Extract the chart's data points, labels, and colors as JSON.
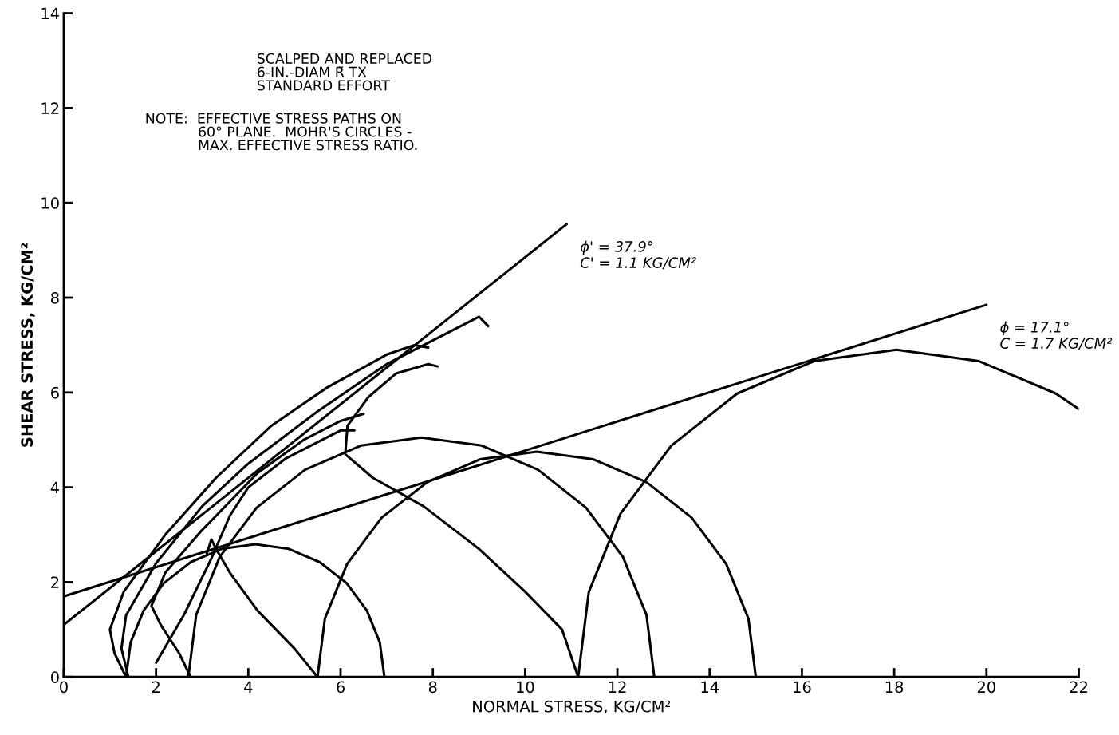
{
  "chart_data": {
    "type": "line",
    "xlabel": "NORMAL STRESS, KG/CM²",
    "ylabel": "SHEAR STRESS, KG/CM²",
    "xlim": [
      0,
      22
    ],
    "xticks": [
      0,
      2,
      4,
      6,
      8,
      10,
      12,
      14,
      16,
      18,
      20,
      22
    ],
    "ylim": [
      0,
      14
    ],
    "yticks": [
      0,
      2,
      4,
      6,
      8,
      10,
      12,
      14
    ],
    "grid": false,
    "annotations": [
      "SCALPED AND REPLACED\n6-IN.-DIAM R̄ TX\nSTANDARD EFFORT",
      "NOTE:  EFFECTIVE STRESS PATHS ON\n            60° PLANE.  MOHR'S CIRCLES -\n            MAX. EFFECTIVE STRESS RATIO.",
      {
        "text": "ϕ' = 37.9°\nC' = 1.1 KG/CM²",
        "x": 10.9,
        "y": 9.55
      },
      {
        "text": "ϕ = 17.1°\nC = 1.7 KG/CM²",
        "x": 20,
        "y": 7.85
      }
    ],
    "series": [
      {
        "color": "#000000",
        "x": [
          0,
          10.9
        ],
        "values": [
          1.1,
          9.55
        ]
      },
      {
        "color": "#000000",
        "x": [
          0,
          20
        ],
        "values": [
          1.7,
          7.85
        ]
      },
      {
        "color": "#000000",
        "x": [
          6.95,
          6.85,
          6.57,
          6.13,
          5.55,
          4.88,
          4.15,
          3.42,
          2.75,
          2.17,
          1.73,
          1.45,
          1.35
        ],
        "values": [
          0,
          0.73,
          1.4,
          1.98,
          2.42,
          2.7,
          2.8,
          2.7,
          2.42,
          1.98,
          1.4,
          0.73,
          0
        ]
      },
      {
        "color": "#000000",
        "x": [
          12.8,
          12.63,
          12.12,
          11.32,
          10.28,
          9.06,
          7.75,
          6.44,
          5.23,
          4.18,
          3.38,
          2.87,
          2.7
        ],
        "values": [
          0,
          1.31,
          2.53,
          3.57,
          4.37,
          4.88,
          5.05,
          4.88,
          4.37,
          3.57,
          2.53,
          1.31,
          0
        ]
      },
      {
        "color": "#000000",
        "x": [
          15.0,
          14.84,
          14.36,
          13.61,
          12.63,
          11.48,
          10.25,
          9.02,
          7.88,
          6.89,
          6.14,
          5.66,
          5.5
        ],
        "values": [
          0,
          1.23,
          2.38,
          3.36,
          4.11,
          4.59,
          4.75,
          4.59,
          4.11,
          3.36,
          2.38,
          1.23,
          0
        ]
      },
      {
        "color": "#000000",
        "x": [
          22,
          21.5,
          19.84,
          18.05,
          16.26,
          14.6,
          13.17,
          12.07,
          11.38,
          11.15
        ],
        "values": [
          5.65,
          5.98,
          6.66,
          6.9,
          6.66,
          5.98,
          4.88,
          3.45,
          1.79,
          0
        ]
      },
      {
        "color": "#000000",
        "x": [
          1.35,
          1.1,
          1.0,
          1.3,
          2.2,
          3.3,
          4.5,
          5.7,
          7.0,
          7.6,
          7.9
        ],
        "values": [
          0,
          0.5,
          1.0,
          1.8,
          3.0,
          4.2,
          5.3,
          6.1,
          6.8,
          7.0,
          6.95
        ]
      },
      {
        "color": "#000000",
        "x": [
          1.4,
          1.25,
          1.35,
          2.0,
          3.0,
          4.0,
          5.5,
          7.0,
          8.2,
          9.0,
          9.2
        ],
        "values": [
          0,
          0.6,
          1.3,
          2.4,
          3.6,
          4.5,
          5.6,
          6.6,
          7.2,
          7.6,
          7.4
        ]
      },
      {
        "color": "#000000",
        "x": [
          2.75,
          2.5,
          2.1,
          1.9,
          2.2,
          3.0,
          4.2,
          5.2,
          6.0,
          6.5
        ],
        "values": [
          0,
          0.5,
          1.1,
          1.5,
          2.2,
          3.1,
          4.3,
          5.0,
          5.4,
          5.55
        ]
      },
      {
        "color": "#000000",
        "x": [
          2.0,
          2.6,
          3.2,
          3.6,
          4.0,
          4.8,
          5.6,
          6.0,
          6.3
        ],
        "values": [
          0.3,
          1.3,
          2.5,
          3.4,
          4.0,
          4.6,
          5.0,
          5.2,
          5.2
        ]
      },
      {
        "color": "#000000",
        "x": [
          5.5,
          5.0,
          4.2,
          3.6,
          3.3,
          3.2,
          3.1
        ],
        "values": [
          0,
          0.6,
          1.4,
          2.2,
          2.7,
          2.9,
          2.6
        ]
      },
      {
        "color": "#000000",
        "x": [
          11.15,
          10.8,
          10.0,
          9.0,
          7.8,
          6.7,
          6.1,
          6.15,
          6.6,
          7.2,
          7.9,
          8.1
        ],
        "values": [
          0,
          1.0,
          1.8,
          2.7,
          3.6,
          4.2,
          4.7,
          5.3,
          5.9,
          6.4,
          6.6,
          6.55
        ]
      }
    ]
  }
}
